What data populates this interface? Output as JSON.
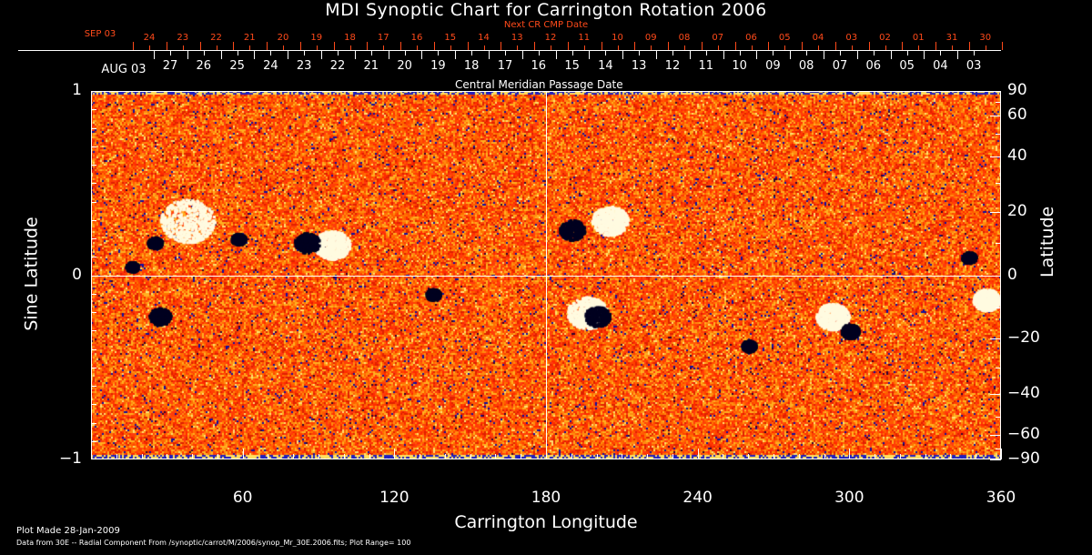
{
  "chart_data": {
    "type": "heatmap",
    "title": "MDI Synoptic Chart for Carrington Rotation 2006",
    "xlabel": "Carrington Longitude",
    "ylabel_left": "Sine Latitude",
    "ylabel_right": "Latitude",
    "xlim": [
      0,
      360
    ],
    "ylim": [
      -1,
      1
    ],
    "x_ticks": [
      "60",
      "120",
      "180",
      "240",
      "300",
      "360"
    ],
    "x_tick_values": [
      60,
      120,
      180,
      240,
      300,
      360
    ],
    "y_left_ticks": [
      {
        "value": 1,
        "label": "1"
      },
      {
        "value": 0,
        "label": "0"
      },
      {
        "value": -1,
        "label": "−1"
      }
    ],
    "y_right_ticks": [
      {
        "lat": 90,
        "label": "90"
      },
      {
        "lat": 60,
        "label": "60"
      },
      {
        "lat": 40,
        "label": "40"
      },
      {
        "lat": 20,
        "label": "20"
      },
      {
        "lat": 0,
        "label": "0"
      },
      {
        "lat": -20,
        "label": "−20"
      },
      {
        "lat": -40,
        "label": "−40"
      },
      {
        "lat": -60,
        "label": "−60"
      },
      {
        "lat": -90,
        "label": "−90"
      }
    ],
    "top_axis_next": {
      "title": "Next CR CMP Date",
      "first_label": "SEP 03",
      "labels": [
        "24",
        "23",
        "22",
        "21",
        "20",
        "19",
        "18",
        "17",
        "16",
        "15",
        "14",
        "13",
        "12",
        "11",
        "10",
        "09",
        "08",
        "07",
        "06",
        "05",
        "04",
        "03",
        "02",
        "01",
        "31",
        "30"
      ]
    },
    "top_axis_cmp": {
      "title": "Central Meridian Passage Date",
      "first_label": "AUG 03",
      "labels": [
        "27",
        "26",
        "25",
        "24",
        "23",
        "22",
        "21",
        "20",
        "19",
        "18",
        "17",
        "16",
        "15",
        "14",
        "13",
        "12",
        "11",
        "10",
        "09",
        "08",
        "07",
        "06",
        "05",
        "04",
        "03"
      ]
    },
    "plot_range": 100,
    "colors": {
      "positive": "#ffffff",
      "negative": "#000040",
      "background": "#ff4000"
    }
  },
  "footer": {
    "plot_made": "Plot Made 28-Jan-2009",
    "data_from": "Data from 30E -- Radial Component From /synoptic/carrot/M/2006/synop_Mr_30E.2006.fits; Plot Range=   100"
  }
}
